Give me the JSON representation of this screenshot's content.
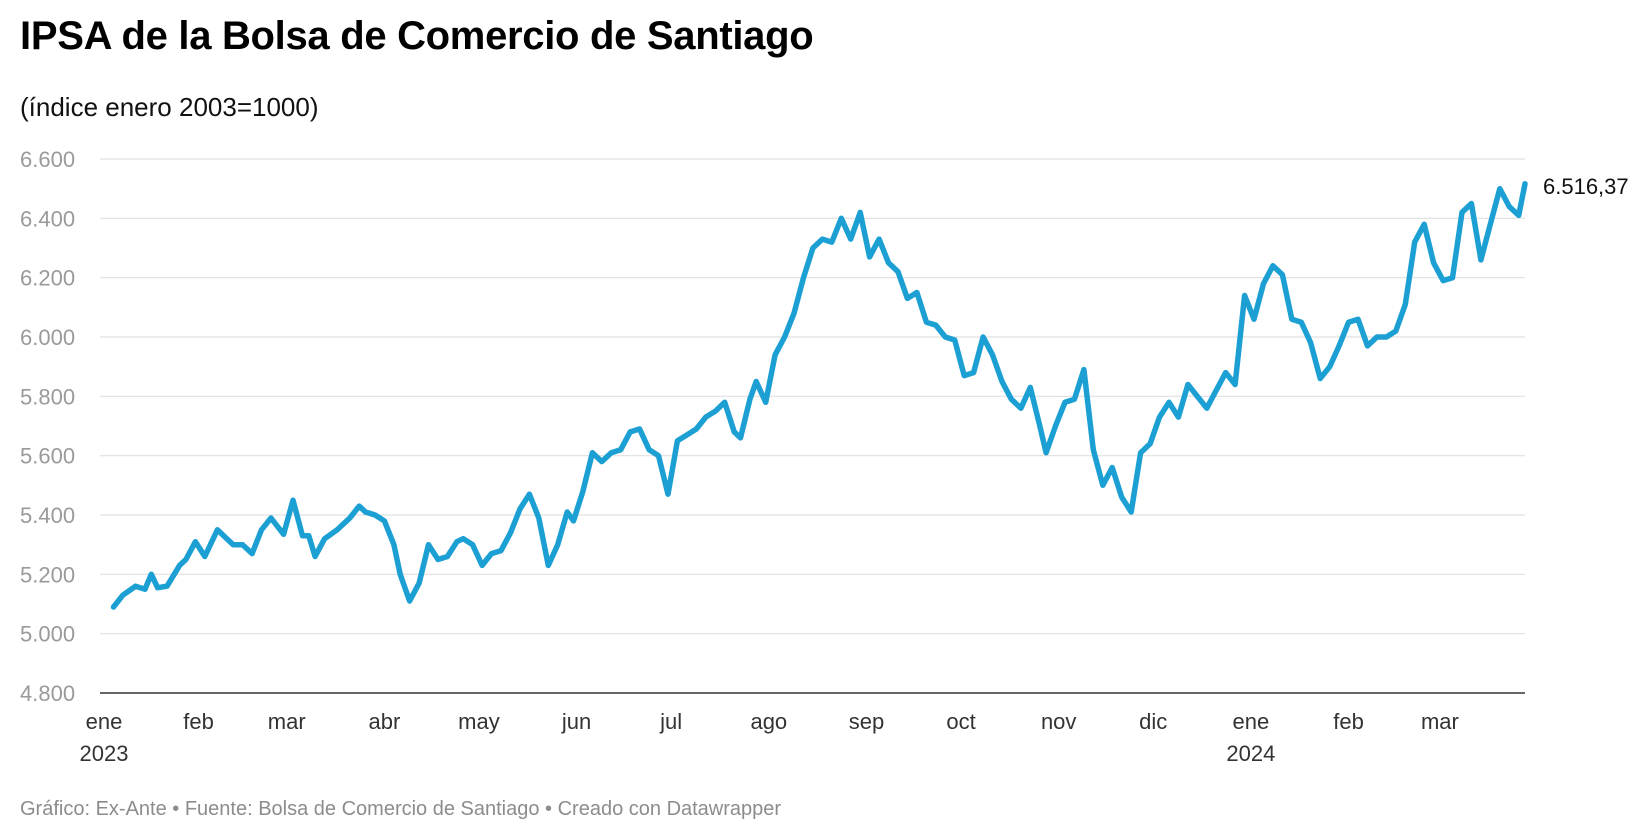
{
  "title": "IPSA de la Bolsa de Comercio de Santiago",
  "subtitle": "(índice enero 2003=1000)",
  "footer": "Gráfico: Ex-Ante • Fuente: Bolsa de Comercio de Santiago • Creado con Datawrapper",
  "colors": {
    "line": "#1ca0d4",
    "grid": "#e0e0e0",
    "axis": "#333333"
  },
  "chart_data": {
    "type": "line",
    "title": "IPSA de la Bolsa de Comercio de Santiago",
    "subtitle": "(índice enero 2003=1000)",
    "xlabel": "",
    "ylabel": "",
    "ylim": [
      4800,
      6600
    ],
    "xlim": [
      "2023-01-02",
      "2024-03-28"
    ],
    "grid": true,
    "legend": "none",
    "y_ticks": [
      4800,
      5000,
      5200,
      5400,
      5600,
      5800,
      6000,
      6200,
      6400,
      6600
    ],
    "y_tick_labels": [
      "4.800",
      "5.000",
      "5.200",
      "5.400",
      "5.600",
      "5.800",
      "6.000",
      "6.200",
      "6.400",
      "6.600"
    ],
    "x_ticks": [
      {
        "date": "2023-01-02",
        "label": "ene",
        "year": "2023"
      },
      {
        "date": "2023-02-01",
        "label": "feb",
        "year": ""
      },
      {
        "date": "2023-03-01",
        "label": "mar",
        "year": ""
      },
      {
        "date": "2023-04-01",
        "label": "abr",
        "year": ""
      },
      {
        "date": "2023-05-01",
        "label": "may",
        "year": ""
      },
      {
        "date": "2023-06-01",
        "label": "jun",
        "year": ""
      },
      {
        "date": "2023-07-01",
        "label": "jul",
        "year": ""
      },
      {
        "date": "2023-08-01",
        "label": "ago",
        "year": ""
      },
      {
        "date": "2023-09-01",
        "label": "sep",
        "year": ""
      },
      {
        "date": "2023-10-01",
        "label": "oct",
        "year": ""
      },
      {
        "date": "2023-11-01",
        "label": "nov",
        "year": ""
      },
      {
        "date": "2023-12-01",
        "label": "dic",
        "year": ""
      },
      {
        "date": "2024-01-01",
        "label": "ene",
        "year": "2024"
      },
      {
        "date": "2024-02-01",
        "label": "feb",
        "year": ""
      },
      {
        "date": "2024-03-01",
        "label": "mar",
        "year": ""
      }
    ],
    "end_label": "6.516,37",
    "series": [
      {
        "x": [
          "2023-01-05",
          "2023-01-08",
          "2023-01-12",
          "2023-01-15",
          "2023-01-17",
          "2023-01-19",
          "2023-01-22",
          "2023-01-26",
          "2023-01-28",
          "2023-01-31",
          "2023-02-03",
          "2023-02-07",
          "2023-02-09",
          "2023-02-12",
          "2023-02-15",
          "2023-02-18",
          "2023-02-21",
          "2023-02-24",
          "2023-02-28",
          "2023-03-03",
          "2023-03-06",
          "2023-03-08",
          "2023-03-10",
          "2023-03-13",
          "2023-03-17",
          "2023-03-19",
          "2023-03-21",
          "2023-03-24",
          "2023-03-26",
          "2023-03-29",
          "2023-04-01",
          "2023-04-04",
          "2023-04-06",
          "2023-04-09",
          "2023-04-12",
          "2023-04-15",
          "2023-04-18",
          "2023-04-21",
          "2023-04-24",
          "2023-04-26",
          "2023-04-29",
          "2023-05-02",
          "2023-05-05",
          "2023-05-08",
          "2023-05-11",
          "2023-05-14",
          "2023-05-17",
          "2023-05-20",
          "2023-05-23",
          "2023-05-26",
          "2023-05-29",
          "2023-05-31",
          "2023-06-03",
          "2023-06-06",
          "2023-06-09",
          "2023-06-12",
          "2023-06-15",
          "2023-06-18",
          "2023-06-21",
          "2023-06-24",
          "2023-06-27",
          "2023-06-30",
          "2023-07-03",
          "2023-07-06",
          "2023-07-09",
          "2023-07-12",
          "2023-07-15",
          "2023-07-18",
          "2023-07-21",
          "2023-07-23",
          "2023-07-26",
          "2023-07-28",
          "2023-07-31",
          "2023-08-03",
          "2023-08-06",
          "2023-08-09",
          "2023-08-12",
          "2023-08-15",
          "2023-08-18",
          "2023-08-21",
          "2023-08-24",
          "2023-08-27",
          "2023-08-30",
          "2023-09-02",
          "2023-09-05",
          "2023-09-08",
          "2023-09-11",
          "2023-09-14",
          "2023-09-17",
          "2023-09-20",
          "2023-09-23",
          "2023-09-26",
          "2023-09-29",
          "2023-10-02",
          "2023-10-05",
          "2023-10-08",
          "2023-10-11",
          "2023-10-14",
          "2023-10-17",
          "2023-10-20",
          "2023-10-23",
          "2023-10-26",
          "2023-10-28",
          "2023-10-31",
          "2023-11-03",
          "2023-11-06",
          "2023-11-09",
          "2023-11-12",
          "2023-11-15",
          "2023-11-18",
          "2023-11-21",
          "2023-11-24",
          "2023-11-27",
          "2023-11-30",
          "2023-12-03",
          "2023-12-06",
          "2023-12-09",
          "2023-12-12",
          "2023-12-15",
          "2023-12-18",
          "2023-12-21",
          "2023-12-24",
          "2023-12-27",
          "2023-12-30",
          "2024-01-02",
          "2024-01-05",
          "2024-01-08",
          "2024-01-11",
          "2024-01-14",
          "2024-01-17",
          "2024-01-20",
          "2024-01-23",
          "2024-01-26",
          "2024-01-29",
          "2024-02-01",
          "2024-02-04",
          "2024-02-07",
          "2024-02-10",
          "2024-02-13",
          "2024-02-16",
          "2024-02-19",
          "2024-02-22",
          "2024-02-25",
          "2024-02-28",
          "2024-03-02",
          "2024-03-05",
          "2024-03-08",
          "2024-03-11",
          "2024-03-14",
          "2024-03-17",
          "2024-03-20",
          "2024-03-23",
          "2024-03-26",
          "2024-03-28"
        ],
        "y": [
          5090,
          5130,
          5160,
          5150,
          5200,
          5155,
          5160,
          5230,
          5250,
          5310,
          5260,
          5350,
          5330,
          5300,
          5300,
          5270,
          5350,
          5390,
          5335,
          5450,
          5330,
          5330,
          5260,
          5320,
          5350,
          5370,
          5390,
          5430,
          5410,
          5400,
          5380,
          5300,
          5200,
          5110,
          5170,
          5300,
          5250,
          5260,
          5310,
          5320,
          5300,
          5230,
          5270,
          5280,
          5340,
          5420,
          5470,
          5390,
          5230,
          5300,
          5410,
          5380,
          5480,
          5610,
          5580,
          5610,
          5620,
          5680,
          5690,
          5620,
          5600,
          5470,
          5650,
          5670,
          5690,
          5730,
          5750,
          5780,
          5680,
          5660,
          5790,
          5850,
          5780,
          5940,
          6000,
          6080,
          6200,
          6300,
          6330,
          6320,
          6400,
          6330,
          6420,
          6270,
          6330,
          6250,
          6220,
          6130,
          6150,
          6050,
          6040,
          6000,
          5990,
          5870,
          5880,
          6000,
          5940,
          5850,
          5790,
          5760,
          5830,
          5700,
          5610,
          5700,
          5780,
          5790,
          5890,
          5620,
          5500,
          5560,
          5460,
          5410,
          5610,
          5640,
          5730,
          5780,
          5730,
          5840,
          5800,
          5760,
          5820,
          5880,
          5840,
          6140,
          6060,
          6180,
          6240,
          6210,
          6060,
          6050,
          5980,
          5860,
          5900,
          5970,
          6050,
          6060,
          5970,
          6000,
          6000,
          6020,
          6110,
          6320,
          6380,
          6250,
          6190,
          6200,
          6420,
          6450,
          6260,
          6380,
          6500,
          6440,
          6410,
          6516.37
        ]
      }
    ]
  }
}
